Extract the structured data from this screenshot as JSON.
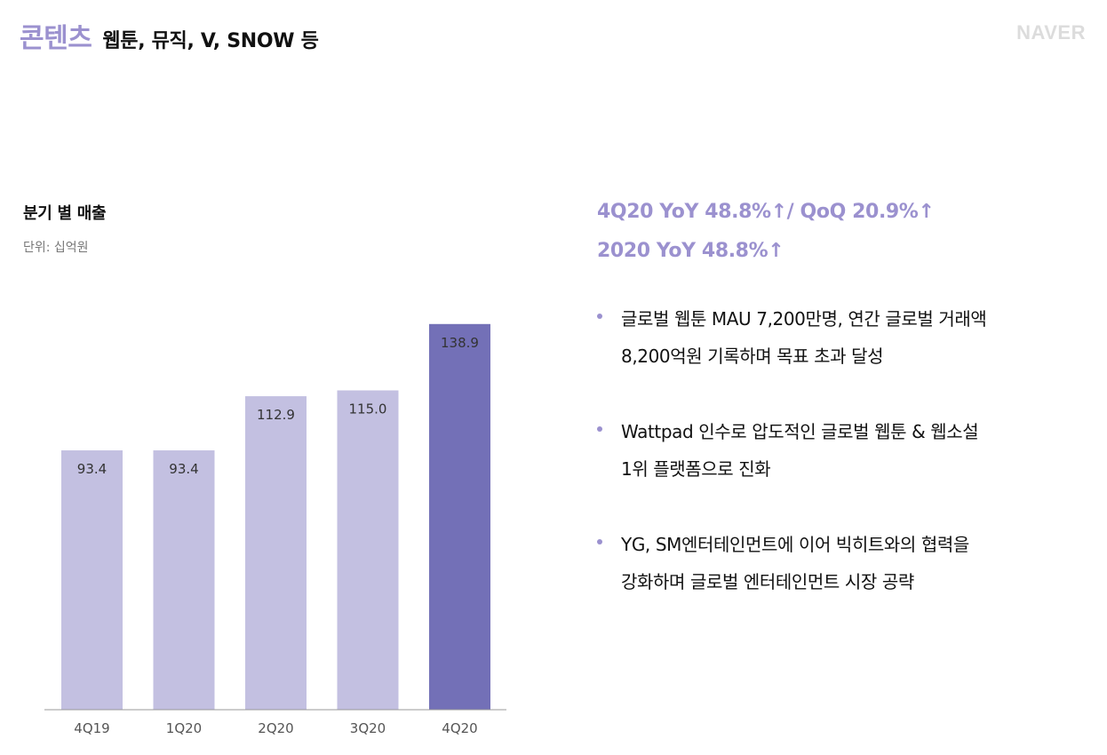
{
  "header": {
    "title": "콘텐츠",
    "subtitle": "웹툰, 뮤직, V, SNOW 등"
  },
  "logo_text": "NAVER",
  "chart_title": "분기 별 매출",
  "chart_unit": "단위: 십억원",
  "headlines": [
    "4Q20 YoY 48.8%↑/ QoQ 20.9%↑",
    "2020 YoY 48.8%↑"
  ],
  "bullets": [
    {
      "lines": [
        "글로벌 웹툰 MAU 7,200만명, 연간 글로벌 거래액",
        "8,200억원 기록하며 목표 초과 달성"
      ]
    },
    {
      "lines": [
        "Wattpad 인수로 압도적인 글로벌 웹툰 & 웹소설",
        "1위 플랫폼으로 진화"
      ]
    },
    {
      "lines": [
        "YG, SM엔터테인먼트에 이어 빅히트와의 협력을",
        "강화하며 글로벌 엔터테인먼트 시장 공략"
      ]
    }
  ],
  "colors": {
    "accent": "#9b91cf",
    "bar_default": "#c3c0e1",
    "bar_highlight": "#7370b7",
    "axis": "#999999",
    "tick_label": "#555555",
    "value_label": "#333333"
  },
  "chart_data": {
    "type": "bar",
    "categories": [
      "4Q19",
      "1Q20",
      "2Q20",
      "3Q20",
      "4Q20"
    ],
    "values": [
      93.4,
      93.4,
      112.9,
      115.0,
      138.9
    ],
    "value_labels": [
      "93.4",
      "93.4",
      "112.9",
      "115.0",
      "138.9"
    ],
    "highlight_index": 4,
    "title": "분기 별 매출",
    "unit": "단위: 십억원",
    "ylim": [
      0,
      140
    ],
    "grid": false,
    "legend": "none"
  }
}
